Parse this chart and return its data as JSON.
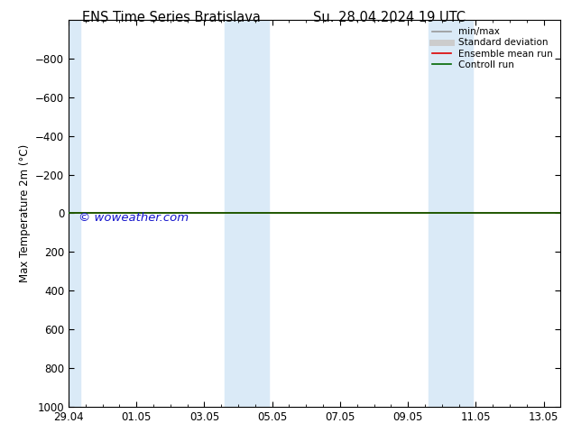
{
  "title_left": "ENS Time Series Bratislava",
  "title_right": "Su. 28.04.2024 19 UTC",
  "ylabel": "Max Temperature 2m (°C)",
  "ylim_top": -1000,
  "ylim_bottom": 1000,
  "yticks": [
    -800,
    -600,
    -400,
    -200,
    0,
    200,
    400,
    600,
    800,
    1000
  ],
  "xtick_labels": [
    "29.04",
    "01.05",
    "03.05",
    "05.05",
    "07.05",
    "09.05",
    "11.05",
    "13.05"
  ],
  "xtick_positions": [
    0,
    2,
    4,
    6,
    8,
    10,
    12,
    14
  ],
  "x_start": 0,
  "x_end": 14,
  "blue_bands": [
    [
      0.0,
      0.35
    ],
    [
      4.6,
      5.4
    ],
    [
      5.4,
      5.9
    ],
    [
      10.6,
      11.4
    ],
    [
      11.4,
      11.9
    ]
  ],
  "green_line_y": 0,
  "red_line_y": 0,
  "background_color": "#ffffff",
  "band_color": "#daeaf7",
  "copyright_text": "© woweather.com",
  "copyright_color": "#1515cc",
  "legend_items": [
    {
      "label": "min/max",
      "color": "#999999",
      "lw": 1.2
    },
    {
      "label": "Standard deviation",
      "color": "#cccccc",
      "lw": 5
    },
    {
      "label": "Ensemble mean run",
      "color": "#dd0000",
      "lw": 1.2
    },
    {
      "label": "Controll run",
      "color": "#006600",
      "lw": 1.2
    }
  ],
  "title_fontsize": 10.5,
  "tick_fontsize": 8.5,
  "ylabel_fontsize": 8.5,
  "legend_fontsize": 7.5
}
